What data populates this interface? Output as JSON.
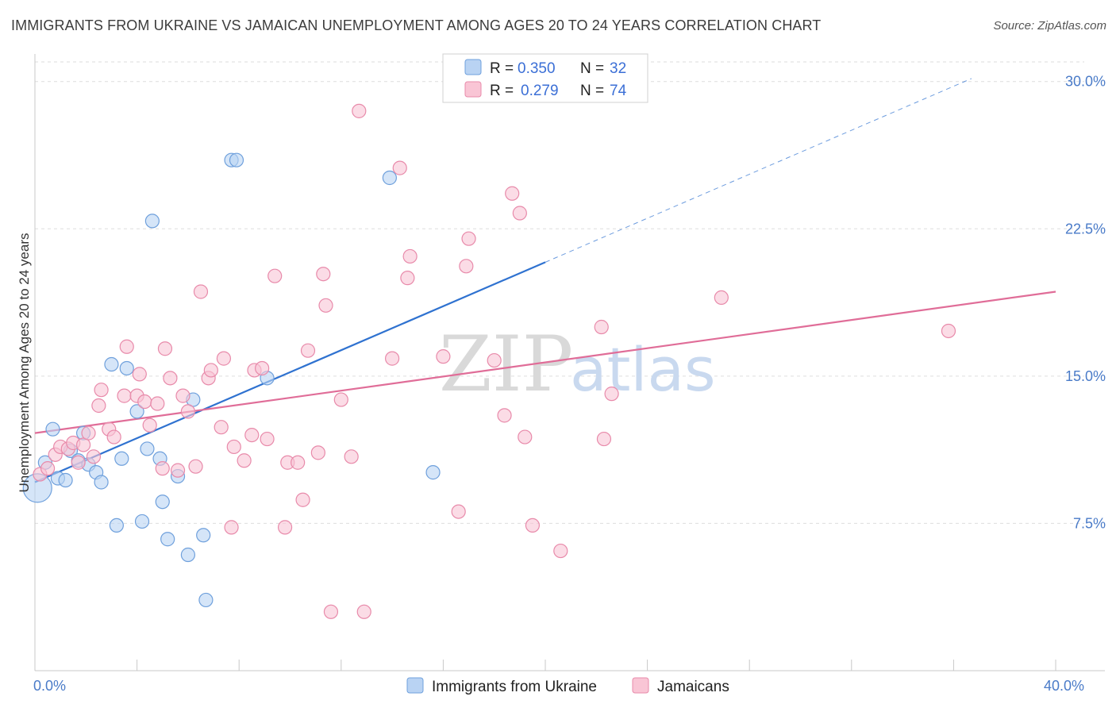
{
  "title": "IMMIGRANTS FROM UKRAINE VS JAMAICAN UNEMPLOYMENT AMONG AGES 20 TO 24 YEARS CORRELATION CHART",
  "source": "Source: ZipAtlas.com",
  "watermark": {
    "zip": "ZIP",
    "atlas": "atlas"
  },
  "colors": {
    "blue_fill": "#b9d3f3",
    "blue_stroke": "#6fa0dc",
    "blue_line": "#2f72d0",
    "pink_fill": "#f9c5d5",
    "pink_stroke": "#e88aaa",
    "pink_line": "#e06d98",
    "tick_label": "#4a7bc8",
    "grid": "#dddddd"
  },
  "legend": {
    "rows": [
      {
        "r_label": "R =",
        "r_value": "0.350",
        "n_label": "N =",
        "n_value": "32"
      },
      {
        "r_label": "R =",
        "r_value": "0.279",
        "n_label": "N =",
        "n_value": "74"
      }
    ]
  },
  "chart_data": {
    "type": "scatter",
    "title": "IMMIGRANTS FROM UKRAINE VS JAMAICAN UNEMPLOYMENT AMONG AGES 20 TO 24 YEARS CORRELATION CHART",
    "xlabel": "",
    "ylabel": "Unemployment Among Ages 20 to 24 years",
    "xlim": [
      0,
      40
    ],
    "ylim": [
      0,
      31
    ],
    "x_tick_labels": [
      {
        "value": 0,
        "label": "0.0%"
      },
      {
        "value": 40,
        "label": "40.0%"
      }
    ],
    "y_ticks": [
      {
        "value": 7.5,
        "label": "7.5%"
      },
      {
        "value": 15.0,
        "label": "15.0%"
      },
      {
        "value": 22.5,
        "label": "22.5%"
      },
      {
        "value": 30.0,
        "label": "30.0%"
      }
    ],
    "x_minor_ticks": [
      0,
      4,
      8,
      12,
      16,
      20,
      24,
      28,
      32,
      36,
      40
    ],
    "grid": true,
    "legend_position": "bottom",
    "series": [
      {
        "name": "Immigrants from Ukraine",
        "color": "blue",
        "r": 0.35,
        "n": 32,
        "trend": {
          "x0": 0,
          "y0": 9.6,
          "x1": 20,
          "y1": 20.8,
          "dashed_to_x": 36.7
        },
        "points": [
          [
            0.1,
            9.3,
            "big"
          ],
          [
            0.4,
            10.6
          ],
          [
            0.7,
            12.3
          ],
          [
            0.9,
            9.8
          ],
          [
            1.2,
            9.7
          ],
          [
            1.4,
            11.2
          ],
          [
            1.7,
            10.7
          ],
          [
            1.9,
            12.1
          ],
          [
            2.1,
            10.5
          ],
          [
            2.4,
            10.1
          ],
          [
            2.6,
            9.6
          ],
          [
            3.0,
            15.6
          ],
          [
            3.2,
            7.4
          ],
          [
            3.4,
            10.8
          ],
          [
            3.6,
            15.4
          ],
          [
            4.0,
            13.2
          ],
          [
            4.2,
            7.6
          ],
          [
            4.4,
            11.3
          ],
          [
            4.6,
            22.9
          ],
          [
            4.9,
            10.8
          ],
          [
            5.0,
            8.6
          ],
          [
            5.2,
            6.7
          ],
          [
            5.6,
            9.9
          ],
          [
            6.0,
            5.9
          ],
          [
            6.2,
            13.8
          ],
          [
            6.6,
            6.9
          ],
          [
            6.7,
            3.6
          ],
          [
            7.7,
            26.0
          ],
          [
            7.9,
            26.0
          ],
          [
            9.1,
            14.9
          ],
          [
            13.9,
            25.1
          ],
          [
            15.6,
            10.1
          ]
        ]
      },
      {
        "name": "Jamaicans",
        "color": "pink",
        "r": 0.279,
        "n": 74,
        "trend": {
          "x0": 0,
          "y0": 12.1,
          "x1": 40,
          "y1": 19.3
        },
        "points": [
          [
            0.2,
            10.0
          ],
          [
            0.5,
            10.3
          ],
          [
            0.8,
            11.0
          ],
          [
            1.0,
            11.4
          ],
          [
            1.3,
            11.3
          ],
          [
            1.5,
            11.6
          ],
          [
            1.7,
            10.6
          ],
          [
            1.9,
            11.5
          ],
          [
            2.1,
            12.1
          ],
          [
            2.3,
            10.9
          ],
          [
            2.5,
            13.5
          ],
          [
            2.6,
            14.3
          ],
          [
            2.9,
            12.3
          ],
          [
            3.1,
            11.9
          ],
          [
            3.5,
            14.0
          ],
          [
            3.6,
            16.5
          ],
          [
            4.0,
            14.0
          ],
          [
            4.1,
            15.1
          ],
          [
            4.3,
            13.7
          ],
          [
            4.5,
            12.5
          ],
          [
            4.8,
            13.6
          ],
          [
            5.0,
            10.3
          ],
          [
            5.1,
            16.4
          ],
          [
            5.3,
            14.9
          ],
          [
            5.6,
            10.2
          ],
          [
            5.8,
            14.0
          ],
          [
            6.0,
            13.2
          ],
          [
            6.3,
            10.4
          ],
          [
            6.5,
            19.3
          ],
          [
            6.8,
            14.9
          ],
          [
            6.9,
            15.3
          ],
          [
            7.3,
            12.4
          ],
          [
            7.4,
            15.9
          ],
          [
            7.7,
            7.3
          ],
          [
            7.8,
            11.4
          ],
          [
            8.2,
            10.7
          ],
          [
            8.5,
            12.0
          ],
          [
            8.6,
            15.3
          ],
          [
            8.9,
            15.4
          ],
          [
            9.1,
            11.8
          ],
          [
            9.4,
            20.1
          ],
          [
            9.8,
            7.3
          ],
          [
            9.9,
            10.6
          ],
          [
            10.3,
            10.6
          ],
          [
            10.5,
            8.7
          ],
          [
            10.7,
            16.3
          ],
          [
            11.1,
            11.1
          ],
          [
            11.3,
            20.2
          ],
          [
            11.4,
            18.6
          ],
          [
            11.6,
            3.0
          ],
          [
            12.0,
            13.8
          ],
          [
            12.4,
            10.9
          ],
          [
            12.7,
            28.5
          ],
          [
            12.9,
            3.0
          ],
          [
            14.0,
            15.9
          ],
          [
            14.3,
            25.6
          ],
          [
            14.6,
            20.0
          ],
          [
            14.7,
            21.1
          ],
          [
            16.0,
            16.0
          ],
          [
            16.6,
            8.1
          ],
          [
            16.9,
            20.6
          ],
          [
            17.0,
            22.0
          ],
          [
            18.0,
            15.8
          ],
          [
            18.4,
            13.0
          ],
          [
            18.7,
            24.3
          ],
          [
            19.0,
            23.3
          ],
          [
            19.2,
            11.9
          ],
          [
            19.5,
            7.4
          ],
          [
            20.6,
            6.1
          ],
          [
            22.2,
            17.5
          ],
          [
            22.3,
            11.8
          ],
          [
            22.6,
            14.1
          ],
          [
            26.9,
            19.0
          ],
          [
            35.8,
            17.3
          ]
        ]
      }
    ]
  }
}
